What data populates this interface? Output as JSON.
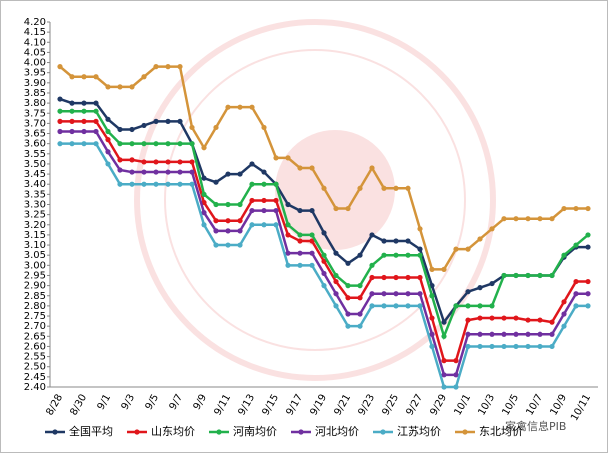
{
  "chart_data": {
    "type": "line",
    "categories": [
      "8/28",
      null,
      "8/30",
      null,
      "9/1",
      null,
      "9/3",
      null,
      "9/5",
      null,
      "9/7",
      null,
      "9/9",
      null,
      "9/11",
      null,
      "9/13",
      null,
      "9/15",
      null,
      "9/17",
      null,
      "9/19",
      null,
      "9/21",
      null,
      "9/23",
      null,
      "9/25",
      null,
      "9/27",
      null,
      "9/29",
      null,
      "10/1",
      null,
      "10/3",
      null,
      "10/5",
      null,
      "10/7",
      null,
      "10/9",
      null,
      "10/11"
    ],
    "series": [
      {
        "name": "全国平均",
        "color": "#1f3864",
        "values": [
          3.82,
          3.8,
          3.8,
          3.8,
          3.72,
          3.67,
          3.67,
          3.69,
          3.71,
          3.71,
          3.71,
          3.6,
          3.43,
          3.41,
          3.45,
          3.45,
          3.5,
          3.46,
          3.4,
          3.3,
          3.27,
          3.27,
          3.16,
          3.06,
          3.01,
          3.05,
          3.15,
          3.12,
          3.12,
          3.12,
          3.08,
          2.9,
          2.72,
          2.8,
          2.87,
          2.89,
          2.91,
          2.95,
          2.95,
          2.95,
          2.95,
          2.95,
          3.04,
          3.09,
          3.09
        ]
      },
      {
        "name": "山东均价",
        "color": "#e0161b",
        "values": [
          3.71,
          3.71,
          3.71,
          3.71,
          3.62,
          3.52,
          3.52,
          3.51,
          3.51,
          3.51,
          3.51,
          3.51,
          3.31,
          3.22,
          3.22,
          3.22,
          3.32,
          3.32,
          3.32,
          3.15,
          3.12,
          3.12,
          3.02,
          2.92,
          2.84,
          2.84,
          2.94,
          2.94,
          2.94,
          2.94,
          2.94,
          2.74,
          2.53,
          2.53,
          2.73,
          2.74,
          2.74,
          2.74,
          2.74,
          2.73,
          2.73,
          2.72,
          2.82,
          2.92,
          2.92
        ]
      },
      {
        "name": "河南均价",
        "color": "#22b14c",
        "values": [
          3.76,
          3.76,
          3.76,
          3.76,
          3.66,
          3.6,
          3.6,
          3.6,
          3.6,
          3.6,
          3.6,
          3.6,
          3.35,
          3.3,
          3.3,
          3.3,
          3.4,
          3.4,
          3.4,
          3.2,
          3.15,
          3.15,
          3.05,
          2.95,
          2.9,
          2.9,
          3.0,
          3.05,
          3.05,
          3.05,
          3.05,
          2.85,
          2.65,
          2.8,
          2.8,
          2.8,
          2.8,
          2.95,
          2.95,
          2.95,
          2.95,
          2.95,
          3.05,
          3.1,
          3.15
        ]
      },
      {
        "name": "河北均价",
        "color": "#7030a0",
        "values": [
          3.66,
          3.66,
          3.66,
          3.66,
          3.56,
          3.47,
          3.46,
          3.46,
          3.46,
          3.46,
          3.46,
          3.46,
          3.26,
          3.17,
          3.17,
          3.17,
          3.27,
          3.27,
          3.27,
          3.06,
          3.06,
          3.06,
          2.96,
          2.86,
          2.76,
          2.76,
          2.86,
          2.86,
          2.86,
          2.86,
          2.86,
          2.66,
          2.46,
          2.46,
          2.66,
          2.66,
          2.66,
          2.66,
          2.66,
          2.66,
          2.66,
          2.66,
          2.76,
          2.86,
          2.86
        ]
      },
      {
        "name": "江苏均价",
        "color": "#4bacc6",
        "values": [
          3.6,
          3.6,
          3.6,
          3.6,
          3.5,
          3.4,
          3.4,
          3.4,
          3.4,
          3.4,
          3.4,
          3.4,
          3.2,
          3.1,
          3.1,
          3.1,
          3.2,
          3.2,
          3.2,
          3.0,
          3.0,
          3.0,
          2.9,
          2.8,
          2.7,
          2.7,
          2.8,
          2.8,
          2.8,
          2.8,
          2.8,
          2.6,
          2.4,
          2.4,
          2.6,
          2.6,
          2.6,
          2.6,
          2.6,
          2.6,
          2.6,
          2.6,
          2.7,
          2.8,
          2.8
        ]
      },
      {
        "name": "东北均价",
        "color": "#d4943a",
        "values": [
          3.98,
          3.93,
          3.93,
          3.93,
          3.88,
          3.88,
          3.88,
          3.93,
          3.98,
          3.98,
          3.98,
          3.68,
          3.58,
          3.68,
          3.78,
          3.78,
          3.78,
          3.68,
          3.53,
          3.53,
          3.48,
          3.48,
          3.38,
          3.28,
          3.28,
          3.38,
          3.48,
          3.38,
          3.38,
          3.38,
          3.18,
          2.98,
          2.98,
          3.08,
          3.08,
          3.13,
          3.18,
          3.23,
          3.23,
          3.23,
          3.23,
          3.23,
          3.28,
          3.28,
          3.28
        ]
      }
    ],
    "ylim": [
      2.4,
      4.2
    ],
    "yticks": [
      {
        "value": 2.4,
        "label": "2.40"
      },
      2.45,
      {
        "value": 2.5,
        "label": "2.50"
      },
      2.55,
      {
        "value": 2.6,
        "label": "2.60"
      },
      2.65,
      {
        "value": 2.7,
        "label": "2.70"
      },
      2.75,
      {
        "value": 2.8,
        "label": "2.80"
      },
      2.85,
      {
        "value": 2.9,
        "label": "2.90"
      },
      2.95,
      {
        "value": 3,
        "label": "3.00"
      },
      3.05,
      {
        "value": 3.1,
        "label": "3.10"
      },
      3.15,
      {
        "value": 3.2,
        "label": "3.20"
      },
      3.25,
      {
        "value": 3.3,
        "label": "3.30"
      },
      3.35,
      {
        "value": 3.4,
        "label": "3.40"
      },
      3.45,
      {
        "value": 3.5,
        "label": "3.50"
      },
      3.55,
      {
        "value": 3.6,
        "label": "3.60"
      },
      3.65,
      {
        "value": 3.7,
        "label": "3.70"
      },
      3.75,
      {
        "value": 3.8,
        "label": "3.80"
      },
      3.85,
      {
        "value": 3.9,
        "label": "3.90"
      },
      3.95,
      {
        "value": 4,
        "label": "4.00"
      },
      4.05,
      {
        "value": 4.1,
        "label": "4.10"
      },
      4.15,
      {
        "value": 4.2,
        "label": "4.20"
      }
    ],
    "grid": false,
    "watermark": "家禽信息PIB"
  }
}
